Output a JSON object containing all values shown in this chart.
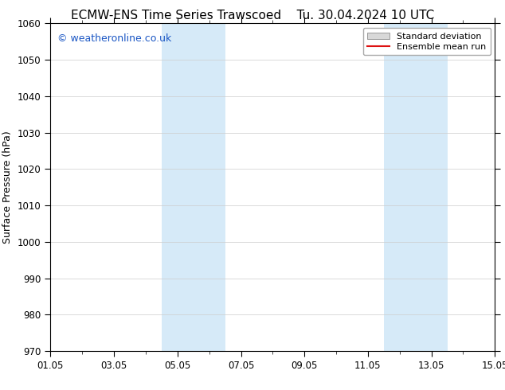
{
  "title_left": "ECMW-ENS Time Series Trawscoed",
  "title_right": "Tu. 30.04.2024 10 UTC",
  "ylabel": "Surface Pressure (hPa)",
  "ylim": [
    970,
    1060
  ],
  "yticks": [
    970,
    980,
    990,
    1000,
    1010,
    1020,
    1030,
    1040,
    1050,
    1060
  ],
  "xlim": [
    0,
    14
  ],
  "xtick_labels": [
    "01.05",
    "03.05",
    "05.05",
    "07.05",
    "09.05",
    "11.05",
    "13.05",
    "15.05"
  ],
  "xtick_positions": [
    0,
    2,
    4,
    6,
    8,
    10,
    12,
    14
  ],
  "shaded_bands": [
    {
      "x_start": 3.5,
      "x_end": 5.5
    },
    {
      "x_start": 10.5,
      "x_end": 12.5
    }
  ],
  "shade_color": "#d6eaf8",
  "watermark_text": "© weatheronline.co.uk",
  "watermark_color": "#1a56c4",
  "legend_std_label": "Standard deviation",
  "legend_mean_label": "Ensemble mean run",
  "legend_std_facecolor": "#d8d8d8",
  "legend_std_edgecolor": "#999999",
  "legend_mean_color": "#dd1111",
  "bg_color": "#ffffff",
  "grid_color": "#cccccc",
  "title_fontsize": 11,
  "tick_fontsize": 8.5,
  "ylabel_fontsize": 9,
  "watermark_fontsize": 9,
  "legend_fontsize": 8
}
